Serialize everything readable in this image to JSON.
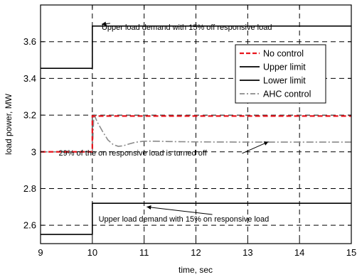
{
  "chart_data": {
    "type": "line",
    "xlabel": "time, sec",
    "ylabel": "load power, MW",
    "xlim": [
      9,
      15
    ],
    "ylim": [
      2.5,
      3.8
    ],
    "xticks": [
      9,
      10,
      11,
      12,
      13,
      14,
      15
    ],
    "yticks": [
      2.6,
      2.8,
      3,
      3.2,
      3.4,
      3.6
    ],
    "ytick_labels": [
      "2.6",
      "2.8",
      "3",
      "3.2",
      "3.4",
      "3.6"
    ],
    "grid": true,
    "legend_position": "top-right",
    "series": [
      {
        "name": "No control",
        "color": "#e8141c",
        "dash": "7,4",
        "x": [
          9,
          10,
          10,
          15
        ],
        "y": [
          3.0,
          3.0,
          3.195,
          3.195
        ]
      },
      {
        "name": "Upper limit",
        "color": "#000000",
        "dash": "",
        "x": [
          9,
          10,
          10,
          15
        ],
        "y": [
          3.455,
          3.455,
          3.685,
          3.685
        ]
      },
      {
        "name": "Lower limit",
        "color": "#000000",
        "dash": "",
        "x": [
          9,
          10,
          10,
          15
        ],
        "y": [
          2.55,
          2.55,
          2.72,
          2.72
        ]
      },
      {
        "name": "AHC control",
        "color": "#8a8a8a",
        "dash": "10,3,2,3",
        "x": [
          9,
          10,
          10.03,
          10.1,
          10.2,
          10.3,
          10.4,
          10.5,
          10.6,
          10.7,
          10.8,
          10.9,
          11,
          11.2,
          11.5,
          12,
          13,
          14,
          15
        ],
        "y": [
          3.0,
          3.0,
          3.205,
          3.16,
          3.11,
          3.065,
          3.04,
          3.03,
          3.033,
          3.042,
          3.05,
          3.055,
          3.058,
          3.058,
          3.056,
          3.054,
          3.053,
          3.053,
          3.053
        ]
      }
    ],
    "annotations": [
      {
        "text": "Upper load demand with 15% off responsive load",
        "x": 10.18,
        "y": 3.665,
        "arrow_to": [
          10.18,
          3.695
        ]
      },
      {
        "text": "29% of the on responsive load is turned off",
        "x": 9.35,
        "y": 2.98,
        "arrow_to": [
          13.4,
          3.055
        ]
      },
      {
        "text": "Upper load demand with 15% on responsive load",
        "x": 10.12,
        "y": 2.62,
        "arrow_to": [
          11.05,
          2.7
        ]
      }
    ]
  }
}
